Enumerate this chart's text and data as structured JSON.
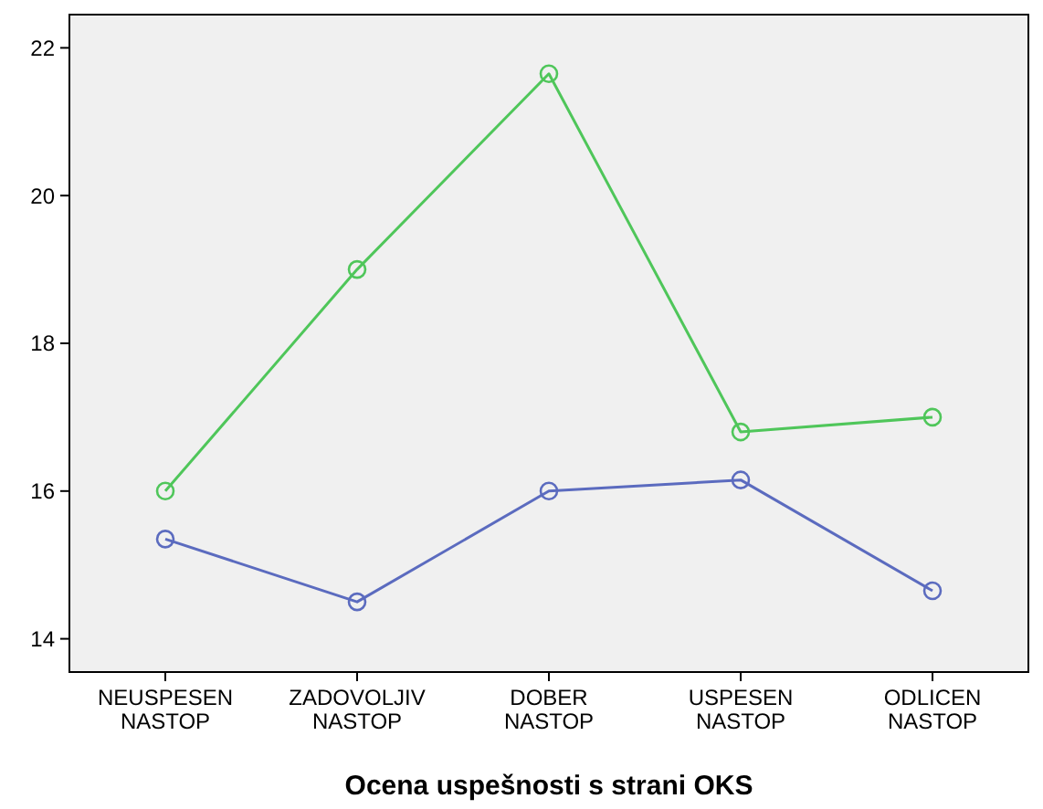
{
  "chart_data": {
    "type": "line",
    "xlabel": "Ocena uspešnosti s strani OKS",
    "categories": [
      "NEUSPESEN NASTOP",
      "ZADOVOLJIV NASTOP",
      "DOBER NASTOP",
      "USPESEN NASTOP",
      "ODLICEN NASTOP"
    ],
    "series": [
      {
        "color": "#4fc65a",
        "values": [
          16.0,
          19.0,
          21.65,
          16.8,
          17.0
        ]
      },
      {
        "color": "#5b6bbf",
        "values": [
          15.35,
          14.5,
          16.0,
          16.15,
          14.65
        ]
      }
    ],
    "ylim": [
      13.55,
      22.45
    ],
    "yticks": [
      14,
      16,
      18,
      20,
      22
    ],
    "grid": false,
    "marker": "circle",
    "line_style": "solid"
  }
}
